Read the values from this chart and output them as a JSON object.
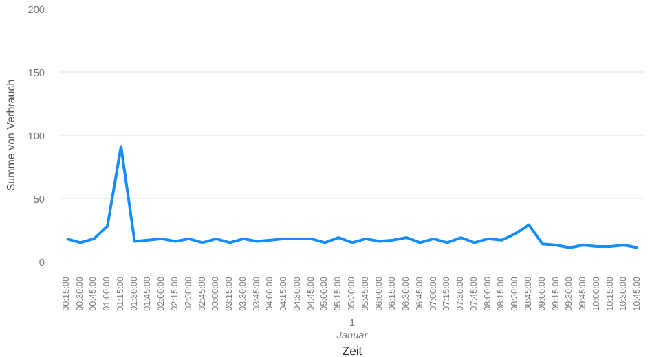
{
  "chart_data": {
    "type": "line",
    "xlabel": "Zeit",
    "ylabel": "Summe von Verbrauch",
    "categories": [
      "00:15:00",
      "00:30:00",
      "00:45:00",
      "01:00:00",
      "01:15:00",
      "01:30:00",
      "01:45:00",
      "02:00:00",
      "02:15:00",
      "02:30:00",
      "02:45:00",
      "03:00:00",
      "03:15:00",
      "03:30:00",
      "03:45:00",
      "04:00:00",
      "04:15:00",
      "04:30:00",
      "04:45:00",
      "05:00:00",
      "05:15:00",
      "05:30:00",
      "05:45:00",
      "06:00:00",
      "06:15:00",
      "06:30:00",
      "06:45:00",
      "07:00:00",
      "07:15:00",
      "07:30:00",
      "07:45:00",
      "08:00:00",
      "08:15:00",
      "08:30:00",
      "08:45:00",
      "09:00:00",
      "09:15:00",
      "09:30:00",
      "09:45:00",
      "10:00:00",
      "10:15:00",
      "10:30:00",
      "10:45:00"
    ],
    "series": [
      {
        "color": "#118dff",
        "values": [
          18,
          15,
          18,
          28,
          91,
          16,
          17,
          18,
          16,
          18,
          15,
          18,
          15,
          18,
          16,
          17,
          18,
          18,
          18,
          15,
          19,
          15,
          18,
          16,
          17,
          19,
          15,
          18,
          15,
          19,
          15,
          18,
          17,
          22,
          29,
          14,
          13,
          11,
          13,
          12,
          12,
          13,
          11
        ]
      }
    ],
    "ylim": [
      0,
      200
    ],
    "yticks": [
      0,
      50,
      100,
      150,
      200
    ],
    "grid": "y",
    "marker": "none",
    "line_style": "solid",
    "annotations": [
      "1",
      "Januar"
    ]
  }
}
